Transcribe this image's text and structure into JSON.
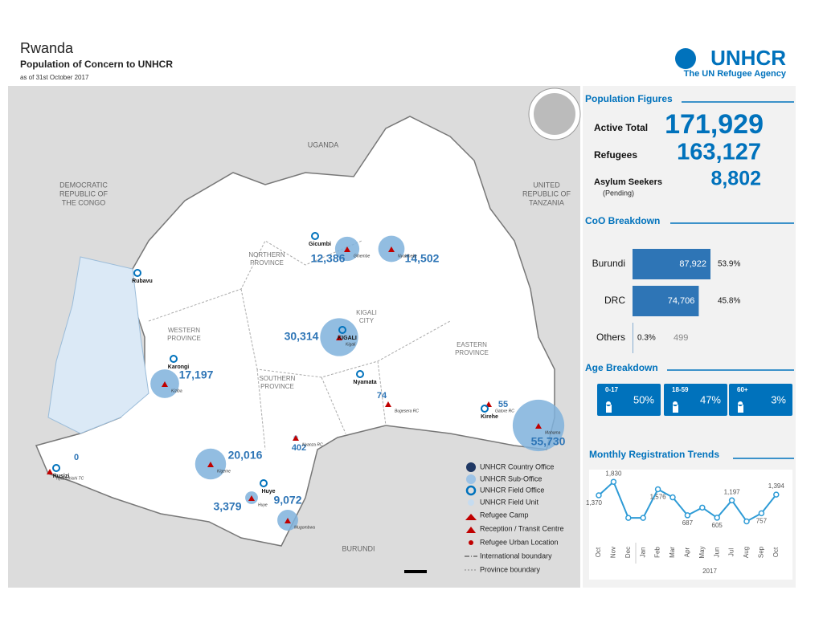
{
  "header": {
    "title": "Rwanda",
    "subtitle": "Population of Concern to UNHCR",
    "date": "as of 31st October 2017"
  },
  "logo": {
    "name": "UNHCR",
    "tagline": "The UN Refugee Agency"
  },
  "map": {
    "countries": [
      {
        "lines": [
          "UGANDA"
        ]
      },
      {
        "lines": [
          "DEMOCRATIC",
          "REPUBLIC OF",
          "THE CONGO"
        ]
      },
      {
        "lines": [
          "UNITED",
          "REPUBLIC OF",
          "TANZANIA"
        ]
      },
      {
        "lines": [
          "BURUNDI"
        ]
      }
    ],
    "provinces": [
      {
        "lines": [
          "NORTHERN",
          "PROVINCE"
        ]
      },
      {
        "lines": [
          "WESTERN",
          "PROVINCE"
        ]
      },
      {
        "lines": [
          "KIGALI",
          "CITY"
        ]
      },
      {
        "lines": [
          "SOUTHERN",
          "PROVINCE"
        ]
      },
      {
        "lines": [
          "EASTERN",
          "PROVINCE"
        ]
      }
    ],
    "offices": [
      "Rubavu",
      "Karongi",
      "Gicumbi",
      "KIGALI",
      "Nyamata",
      "Kirehe",
      "Huye",
      "Rusizi"
    ],
    "sites": [
      {
        "name": "Gihembe",
        "value": 12386,
        "label": "12,386"
      },
      {
        "name": "Nyabiheke",
        "value": 14502,
        "label": "14,502"
      },
      {
        "name": "Kigali",
        "value": 30314,
        "label": "30,314"
      },
      {
        "name": "Kiziba",
        "value": 17197,
        "label": "17,197"
      },
      {
        "name": "Kigeme",
        "value": 20016,
        "label": "20,016"
      },
      {
        "name": "Huye",
        "value": 3379,
        "label": "3,379"
      },
      {
        "name": "Mugombwa",
        "value": 9072,
        "label": "9,072"
      },
      {
        "name": "Mahama",
        "value": 55730,
        "label": "55,730"
      },
      {
        "name": "Nyarushishi TC",
        "value": 0,
        "label": "0"
      },
      {
        "name": "Bugesera RC",
        "value": 74,
        "label": "74"
      },
      {
        "name": "Nyanza RC",
        "value": 402,
        "label": "402"
      },
      {
        "name": "Gatore RC",
        "value": 55,
        "label": "55"
      }
    ],
    "legend": [
      "UNHCR Country Office",
      "UNHCR Sub-Office",
      "UNHCR Field Office",
      "UNHCR Field Unit",
      "Refugee Camp",
      "Reception / Transit Centre",
      "Refugee Urban Location",
      "International boundary",
      "Province boundary"
    ]
  },
  "population": {
    "title": "Population Figures",
    "rows": [
      {
        "label": "Active Total",
        "value": "171,929"
      },
      {
        "label": "Refugees",
        "value": "163,127"
      },
      {
        "label": "Asylum Seekers",
        "note": "(Pending)",
        "value": "8,802"
      }
    ]
  },
  "coo": {
    "title": "CoO Breakdown",
    "categories": [
      "Burundi",
      "DRC",
      "Others"
    ],
    "values": [
      87922,
      74706,
      499
    ],
    "value_labels": [
      "87,922",
      "74,706",
      "499"
    ],
    "percents": [
      "53.9%",
      "45.8%",
      "0.3%"
    ],
    "color": "#2e75b6"
  },
  "age": {
    "title": "Age Breakdown",
    "groups": [
      {
        "range": "0-17",
        "percent": "50%"
      },
      {
        "range": "18-59",
        "percent": "47%"
      },
      {
        "range": "60+",
        "percent": "3%"
      }
    ]
  },
  "trends": {
    "title": "Monthly Registration Trends",
    "categories": [
      "Oct",
      "Nov",
      "Dec",
      "Jan",
      "Feb",
      "Mar",
      "Apr",
      "May",
      "Jun",
      "Jul",
      "Aug",
      "Sep",
      "Oct"
    ],
    "values": [
      1370,
      1830,
      600,
      600,
      1576,
      1300,
      687,
      950,
      605,
      1197,
      480,
      757,
      1394
    ],
    "value_labels": [
      "1,370",
      "1,830",
      null,
      null,
      "1,576",
      null,
      "687",
      null,
      "605",
      "1,197",
      null,
      "757",
      "1,394"
    ],
    "year": "2017",
    "color": "#2e9bd6"
  }
}
